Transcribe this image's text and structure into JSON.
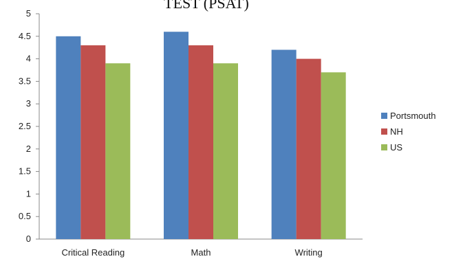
{
  "chart_data": {
    "type": "bar",
    "title": "TEST (PSAT)",
    "xlabel": "",
    "ylabel": "",
    "categories": [
      "Critical Reading",
      "Math",
      "Writing"
    ],
    "series": [
      {
        "name": "Portsmouth",
        "values": [
          4.5,
          4.6,
          4.2
        ]
      },
      {
        "name": "NH",
        "values": [
          4.3,
          4.3,
          4.0
        ]
      },
      {
        "name": "US",
        "values": [
          3.9,
          3.9,
          3.7
        ]
      }
    ],
    "ylim": [
      0,
      5
    ],
    "yticks": [
      "0",
      "0.5",
      "1",
      "1.5",
      "2",
      "2.5",
      "3",
      "3.5",
      "4",
      "4.5",
      "5"
    ],
    "grid": false,
    "legend_position": "right",
    "colors": [
      "#4F81BD",
      "#C0504D",
      "#9BBB59"
    ]
  }
}
